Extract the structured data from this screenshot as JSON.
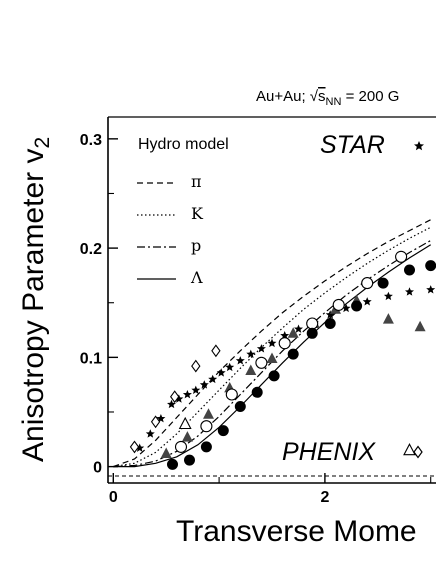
{
  "chart_data": {
    "type": "scatter",
    "header": {
      "system": "Au+Au; ",
      "sqrt": "s",
      "sub": "NN",
      "energy": " = 200 G"
    },
    "xlabel": "Transverse Mome",
    "ylabel": "Anisotropy Parameter v",
    "ylabel_sub": "2",
    "xlim": [
      -0.05,
      3.05
    ],
    "ylim": [
      -0.015,
      0.32
    ],
    "x_ticks": [
      "0",
      "2"
    ],
    "y_ticks": [
      "0",
      "0.1",
      "0.2",
      "0.3"
    ],
    "x_tick_values": [
      0,
      2
    ],
    "y_tick_values": [
      0,
      0.1,
      0.2,
      0.3
    ],
    "legend": {
      "title": "Hydro model",
      "entries": [
        {
          "label": "π",
          "dash": "6,4"
        },
        {
          "label": "K",
          "dash": "1.5,2.5"
        },
        {
          "label": "p",
          "dash": "8,3,2,3"
        },
        {
          "label": "Λ",
          "dash": ""
        }
      ]
    },
    "experiment_labels": {
      "star": "STAR",
      "phenix": "PHENIX"
    },
    "hydro_curves": [
      {
        "name": "π",
        "dash": "6,4",
        "x": [
          0,
          0.2,
          0.4,
          0.6,
          0.8,
          1.0,
          1.2,
          1.4,
          1.6,
          1.8,
          2.0,
          2.2,
          2.4,
          2.6,
          2.8,
          3.0
        ],
        "y": [
          0,
          0.007,
          0.024,
          0.045,
          0.066,
          0.087,
          0.106,
          0.124,
          0.141,
          0.156,
          0.17,
          0.183,
          0.195,
          0.206,
          0.216,
          0.226
        ]
      },
      {
        "name": "K",
        "dash": "1.5,2.5",
        "x": [
          0,
          0.2,
          0.4,
          0.6,
          0.8,
          1.0,
          1.2,
          1.4,
          1.6,
          1.8,
          2.0,
          2.2,
          2.4,
          2.6,
          2.8,
          3.0
        ],
        "y": [
          0,
          0.003,
          0.013,
          0.03,
          0.05,
          0.07,
          0.09,
          0.109,
          0.127,
          0.144,
          0.159,
          0.173,
          0.186,
          0.198,
          0.209,
          0.219
        ]
      },
      {
        "name": "p",
        "dash": "8,3,2,3",
        "x": [
          0,
          0.2,
          0.4,
          0.6,
          0.8,
          1.0,
          1.2,
          1.4,
          1.6,
          1.8,
          2.0,
          2.2,
          2.4,
          2.6,
          2.8,
          3.0
        ],
        "y": [
          0,
          0.001,
          0.005,
          0.014,
          0.028,
          0.046,
          0.066,
          0.086,
          0.106,
          0.124,
          0.141,
          0.157,
          0.171,
          0.184,
          0.196,
          0.207
        ]
      },
      {
        "name": "Λ",
        "dash": "",
        "x": [
          0,
          0.2,
          0.4,
          0.6,
          0.8,
          1.0,
          1.2,
          1.4,
          1.6,
          1.8,
          2.0,
          2.2,
          2.4,
          2.6,
          2.8,
          3.0
        ],
        "y": [
          0,
          0,
          0.003,
          0.009,
          0.02,
          0.036,
          0.055,
          0.075,
          0.095,
          0.114,
          0.132,
          0.149,
          0.164,
          0.178,
          0.191,
          0.203
        ]
      }
    ],
    "series": [
      {
        "name": "STAR star",
        "marker": "star",
        "x": [
          0.25,
          0.35,
          0.45,
          0.55,
          0.62,
          0.7,
          0.78,
          0.86,
          0.94,
          1.02,
          1.1,
          1.2,
          1.3,
          1.4,
          1.5,
          1.62,
          1.75,
          1.9,
          2.05,
          2.2,
          2.4,
          2.6,
          2.8,
          3.0
        ],
        "y": [
          0.017,
          0.03,
          0.044,
          0.057,
          0.062,
          0.066,
          0.07,
          0.075,
          0.08,
          0.086,
          0.091,
          0.097,
          0.103,
          0.108,
          0.113,
          0.12,
          0.126,
          0.132,
          0.139,
          0.145,
          0.151,
          0.156,
          0.16,
          0.162
        ]
      },
      {
        "name": "PHENIX diamond",
        "marker": "diamond-open",
        "x": [
          0.2,
          0.4,
          0.58,
          0.78,
          0.97
        ],
        "y": [
          0.018,
          0.041,
          0.064,
          0.092,
          0.106
        ]
      },
      {
        "name": "filled triangle",
        "marker": "triangle-filled",
        "x": [
          0.5,
          0.7,
          0.9,
          1.1,
          1.3,
          1.5,
          1.7,
          1.9,
          2.1,
          2.3,
          2.6,
          2.9
        ],
        "y": [
          0.012,
          0.027,
          0.048,
          0.072,
          0.088,
          0.099,
          0.122,
          0.131,
          0.144,
          0.152,
          0.135,
          0.128
        ]
      },
      {
        "name": "open triangle",
        "marker": "triangle-open",
        "x": [
          0.68,
          2.8
        ],
        "y": [
          0.039,
          0.015
        ]
      },
      {
        "name": "open circle",
        "marker": "circle-open",
        "x": [
          0.64,
          0.88,
          1.12,
          1.4,
          1.62,
          1.88,
          2.13,
          2.4,
          2.72
        ],
        "y": [
          0.018,
          0.037,
          0.066,
          0.095,
          0.113,
          0.131,
          0.148,
          0.168,
          0.192
        ]
      },
      {
        "name": "filled circle",
        "marker": "circle-filled",
        "x": [
          0.56,
          0.72,
          0.88,
          1.04,
          1.2,
          1.36,
          1.52,
          1.7,
          1.88,
          2.05,
          2.3,
          2.55,
          2.8,
          3.0
        ],
        "y": [
          0.002,
          0.006,
          0.018,
          0.033,
          0.055,
          0.068,
          0.083,
          0.103,
          0.122,
          0.131,
          0.147,
          0.168,
          0.18,
          0.184
        ]
      }
    ]
  }
}
